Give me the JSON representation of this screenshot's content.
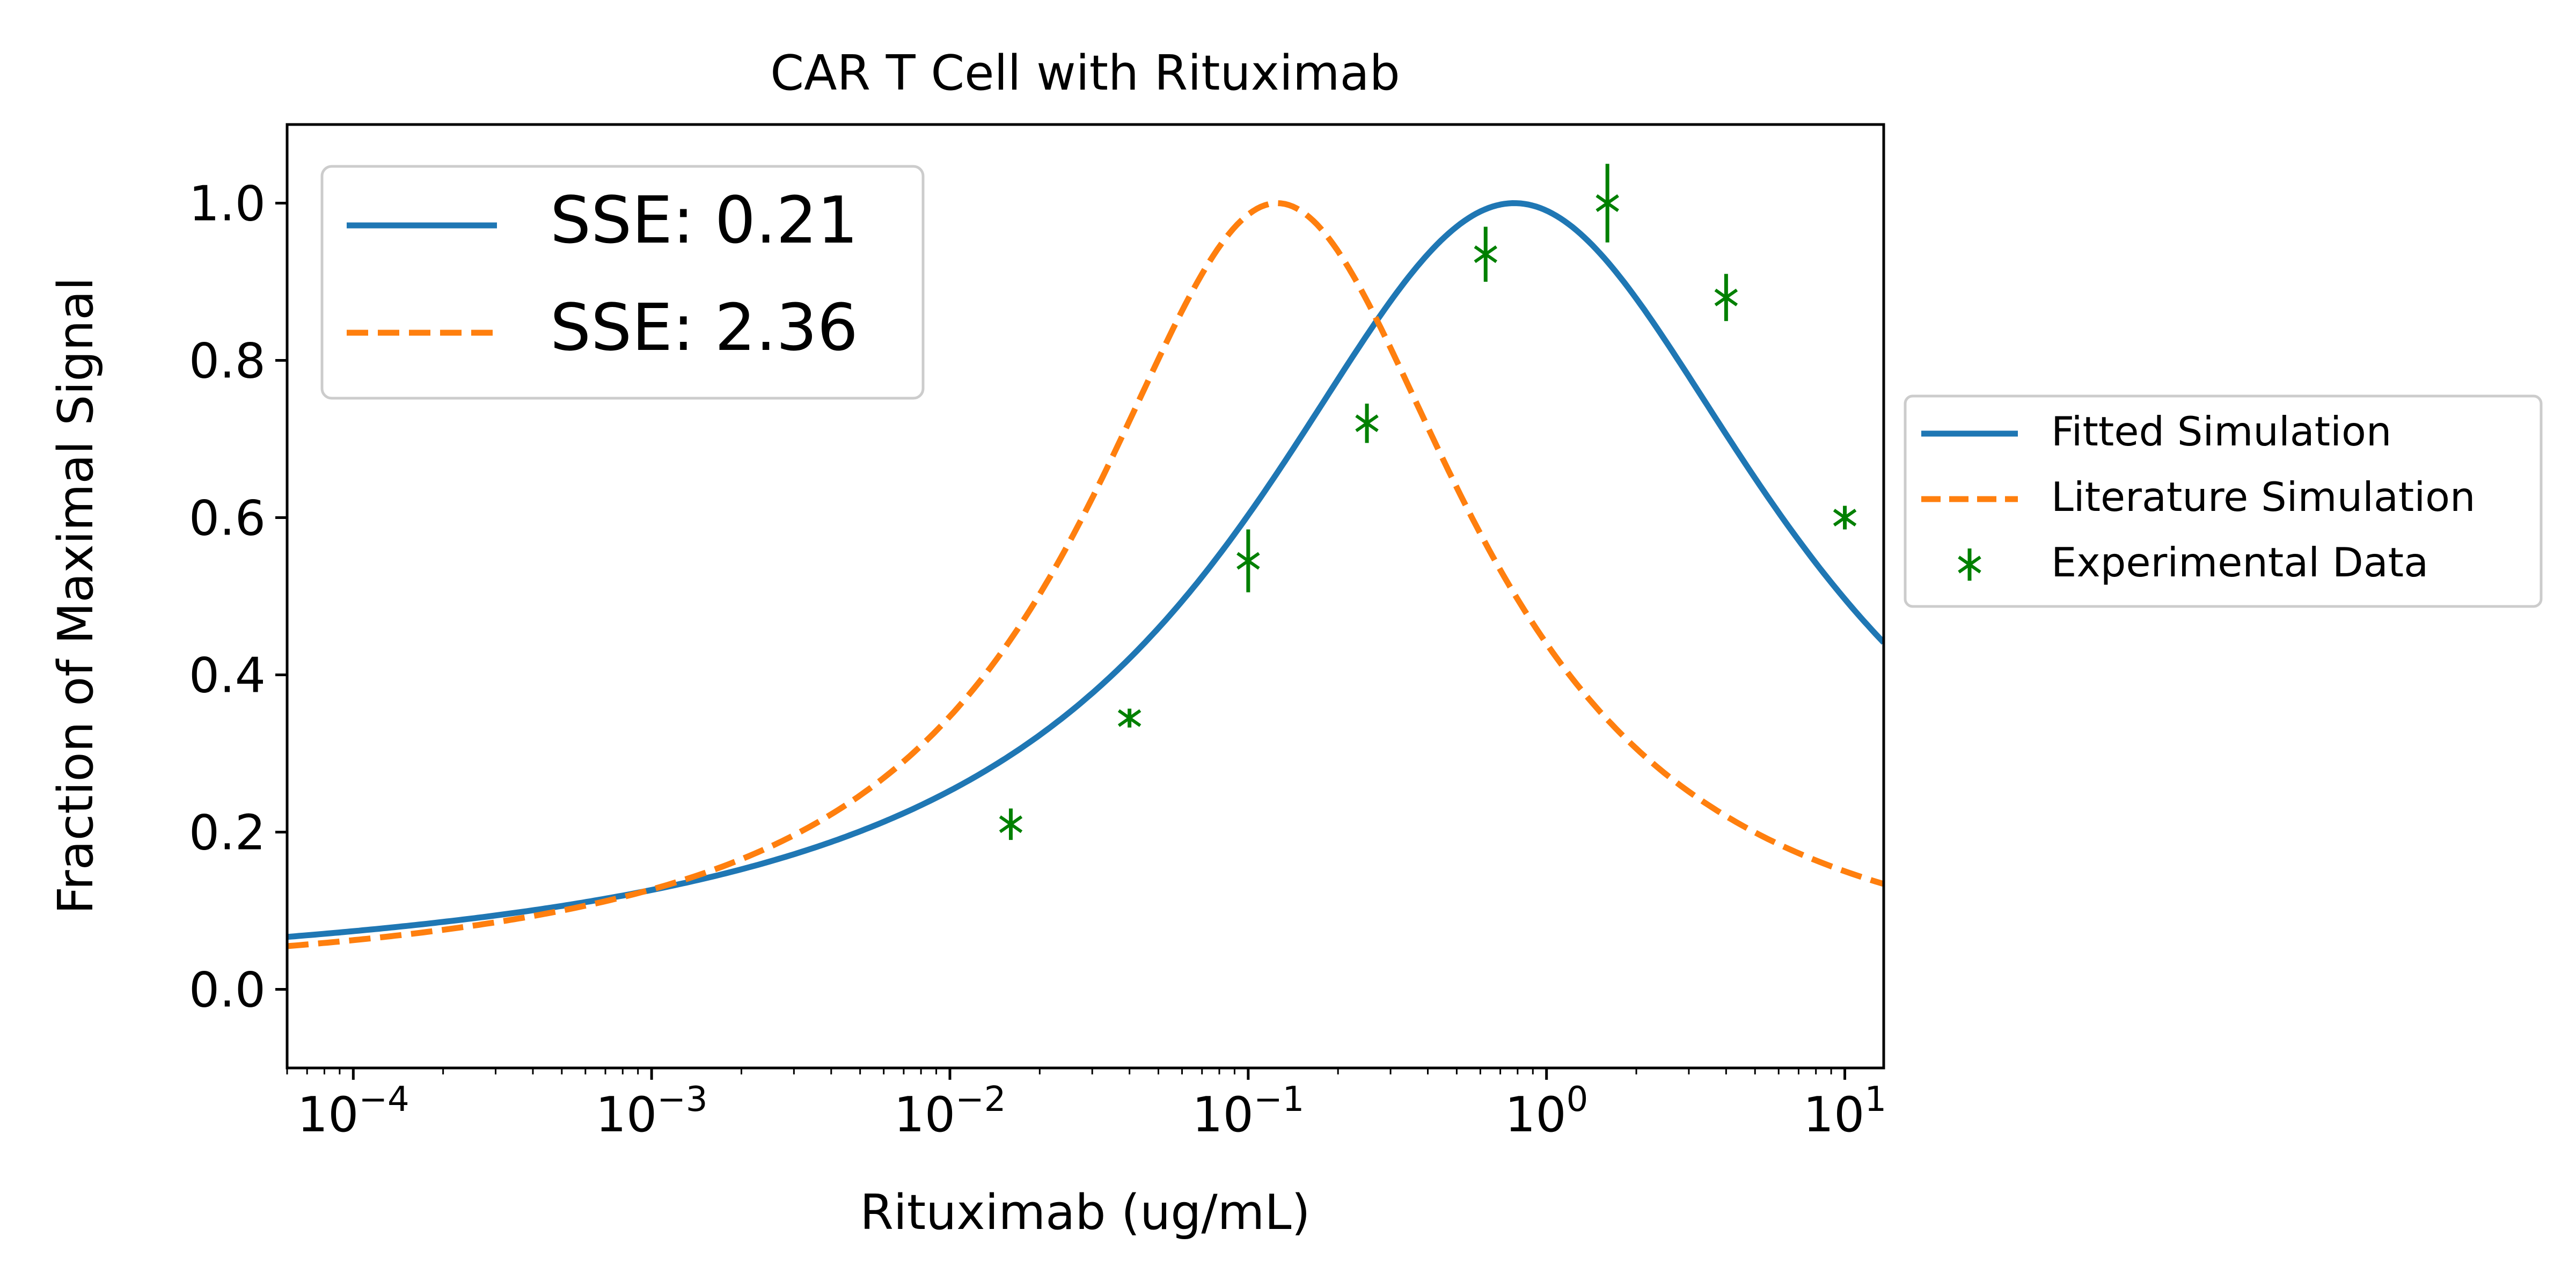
{
  "chart_data": {
    "type": "line",
    "title": "CAR T Cell with Rituximab",
    "xlabel": "Rituximab (ug/mL)",
    "ylabel": "Fraction of Maximal Signal",
    "x_scale": "log",
    "xlim": [
      6e-05,
      13.5
    ],
    "ylim": [
      -0.1,
      1.1
    ],
    "x_ticks": [
      {
        "value": 0.0001,
        "base": "10",
        "exp": "−4"
      },
      {
        "value": 0.001,
        "base": "10",
        "exp": "−3"
      },
      {
        "value": 0.01,
        "base": "10",
        "exp": "−2"
      },
      {
        "value": 0.1,
        "base": "10",
        "exp": "−1"
      },
      {
        "value": 1,
        "base": "10",
        "exp": "0"
      },
      {
        "value": 10,
        "base": "10",
        "exp": "1"
      }
    ],
    "y_ticks": [
      {
        "value": 0.0,
        "label": "0.0"
      },
      {
        "value": 0.2,
        "label": "0.2"
      },
      {
        "value": 0.4,
        "label": "0.4"
      },
      {
        "value": 0.6,
        "label": "0.6"
      },
      {
        "value": 0.8,
        "label": "0.8"
      },
      {
        "value": 1.0,
        "label": "1.0"
      }
    ],
    "grid": false,
    "series": [
      {
        "name": "Fitted Simulation",
        "kind": "line",
        "style": "solid",
        "color": "#1f77b4",
        "peak_x": 0.78,
        "half_width_decades": 1.1,
        "peak_y": 1.0
      },
      {
        "name": "Literature Simulation",
        "kind": "line",
        "style": "dashed",
        "color": "#ff7f0e",
        "peak_x": 0.125,
        "half_width_decades": 0.8,
        "peak_y": 1.0
      },
      {
        "name": "Experimental Data",
        "kind": "errorbar",
        "color": "#008000",
        "points": [
          {
            "x": 0.016,
            "y": 0.21,
            "err": 0.02
          },
          {
            "x": 0.04,
            "y": 0.345,
            "err": 0.012
          },
          {
            "x": 0.1,
            "y": 0.545,
            "err": 0.04
          },
          {
            "x": 0.25,
            "y": 0.72,
            "err": 0.025
          },
          {
            "x": 0.625,
            "y": 0.935,
            "err": 0.035
          },
          {
            "x": 1.6,
            "y": 1.0,
            "err": 0.05
          },
          {
            "x": 4.0,
            "y": 0.88,
            "err": 0.03
          },
          {
            "x": 10.0,
            "y": 0.6,
            "err": 0.015
          }
        ]
      }
    ],
    "inner_legend": {
      "placement": "upper-left",
      "entries": [
        {
          "label": "SSE: 0.21",
          "color": "#1f77b4",
          "style": "solid"
        },
        {
          "label": "SSE: 2.36",
          "color": "#ff7f0e",
          "style": "dashed"
        }
      ]
    },
    "outer_legend": {
      "placement": "right-of-plot",
      "entries": [
        {
          "label": "Fitted Simulation",
          "color": "#1f77b4",
          "style": "solid"
        },
        {
          "label": "Literature Simulation",
          "color": "#ff7f0e",
          "style": "dashed"
        },
        {
          "label": "Experimental Data",
          "color": "#008000",
          "style": "marker"
        }
      ]
    }
  }
}
